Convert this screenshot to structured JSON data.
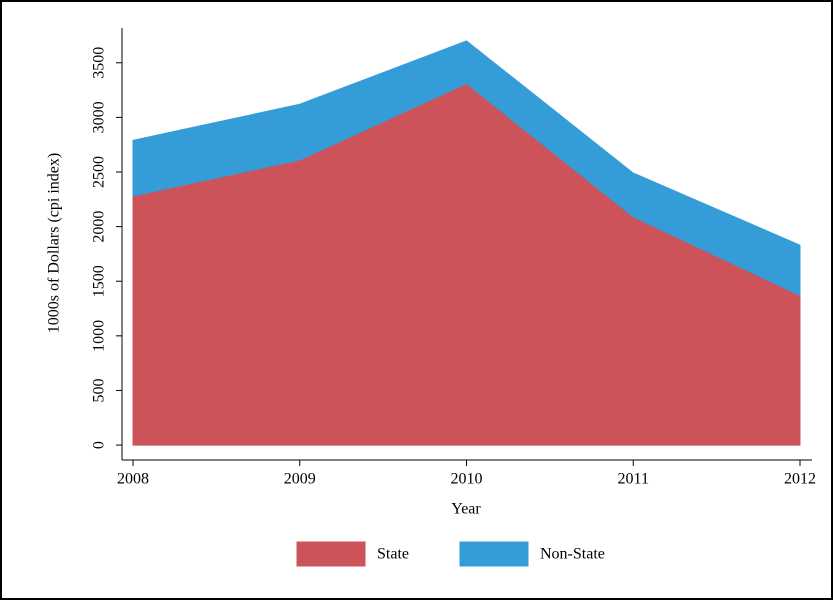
{
  "chart_data": {
    "type": "stacked-area",
    "x": [
      2008,
      2009,
      2010,
      2011,
      2012
    ],
    "xlabel": "Year",
    "ylabel": "1000s of Dollars (cpi index)",
    "series": [
      {
        "name": "State",
        "color": "#cc535a",
        "values": [
          2280,
          2610,
          3310,
          2090,
          1370
        ]
      },
      {
        "name": "Non-State",
        "color": "#349cd6",
        "values": [
          510,
          510,
          390,
          400,
          460
        ]
      }
    ],
    "xlim": [
      2008,
      2012
    ],
    "xticks": [
      2008,
      2009,
      2010,
      2011,
      2012
    ],
    "ylim": [
      -100,
      3800
    ],
    "yticks": [
      0,
      500,
      1000,
      1500,
      2000,
      2500,
      3000,
      3500
    ],
    "legend": "bottom"
  }
}
